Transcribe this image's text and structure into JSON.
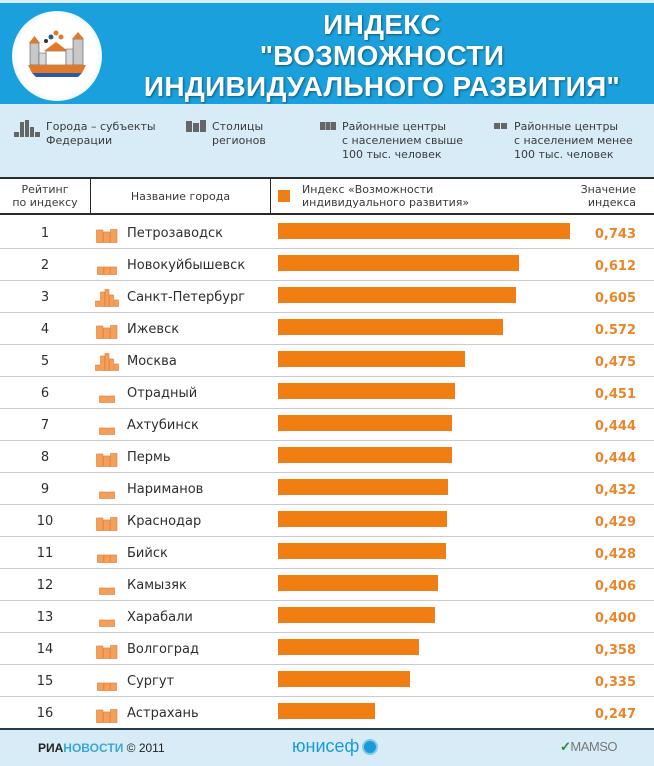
{
  "header": {
    "title_line1": "ИНДЕКС",
    "title_line2": "\"ВОЗМОЖНОСТИ",
    "title_line3": "ИНДИВИДУАЛЬНОГО РАЗВИТИЯ\"",
    "logo_icon": "city-logo-icon"
  },
  "legend": {
    "items": [
      {
        "icon": "federal-city-icon",
        "line1": "Города – субъекты",
        "line2": "Федерации",
        "line3": ""
      },
      {
        "icon": "regional-capital-icon",
        "line1": "Столицы",
        "line2": "регионов",
        "line3": ""
      },
      {
        "icon": "district-center-large-icon",
        "line1": "Районные центры",
        "line2": "с населением свыше",
        "line3": "100 тыс. человек"
      },
      {
        "icon": "district-center-small-icon",
        "line1": "Районные центры",
        "line2": "с населением менее",
        "line3": "100 тыс. человек"
      }
    ]
  },
  "table": {
    "headers": {
      "rank_line1": "Рейтинг",
      "rank_line2": "по индексу",
      "city": "Название города",
      "index_line1": "Индекс «Возможности",
      "index_line2": "индивидуального развития»",
      "value_line1": "Значение",
      "value_line2": "индекса"
    },
    "colors": {
      "bar": "#f07e12",
      "value_text": "#e9862a",
      "header_blue": "#1aa0dc",
      "light_blue": "#d8ecf8"
    }
  },
  "chart_data": {
    "type": "bar",
    "orientation": "horizontal",
    "title": "Индекс \"Возможности индивидуального развития\"",
    "xlabel": "Индекс «Возможности индивидуального развития»",
    "ylabel": "Название города",
    "xlim": [
      0,
      0.75
    ],
    "grid": false,
    "legend_position": "top",
    "rows": [
      {
        "rank": "1",
        "city": "Петрозаводск",
        "type": "regional-capital",
        "value": 0.743,
        "label": "0,743"
      },
      {
        "rank": "2",
        "city": "Новокуйбышевск",
        "type": "district-center-large",
        "value": 0.612,
        "label": "0,612"
      },
      {
        "rank": "3",
        "city": "Санкт-Петербург",
        "type": "federal-city",
        "value": 0.605,
        "label": "0,605"
      },
      {
        "rank": "4",
        "city": "Ижевск",
        "type": "regional-capital",
        "value": 0.572,
        "label": "0.572"
      },
      {
        "rank": "5",
        "city": "Москва",
        "type": "federal-city",
        "value": 0.475,
        "label": "0,475"
      },
      {
        "rank": "6",
        "city": "Отрадный",
        "type": "district-center-small",
        "value": 0.451,
        "label": "0,451"
      },
      {
        "rank": "7",
        "city": "Ахтубинск",
        "type": "district-center-small",
        "value": 0.444,
        "label": "0,444"
      },
      {
        "rank": "8",
        "city": "Пермь",
        "type": "regional-capital",
        "value": 0.444,
        "label": "0,444"
      },
      {
        "rank": "9",
        "city": "Нариманов",
        "type": "district-center-small",
        "value": 0.432,
        "label": "0,432"
      },
      {
        "rank": "10",
        "city": "Краснодар",
        "type": "regional-capital",
        "value": 0.429,
        "label": "0,429"
      },
      {
        "rank": "11",
        "city": "Бийск",
        "type": "district-center-large",
        "value": 0.428,
        "label": "0,428"
      },
      {
        "rank": "12",
        "city": "Камызяк",
        "type": "district-center-small",
        "value": 0.406,
        "label": "0,406"
      },
      {
        "rank": "13",
        "city": "Харабали",
        "type": "district-center-small",
        "value": 0.4,
        "label": "0,400"
      },
      {
        "rank": "14",
        "city": "Волгоград",
        "type": "regional-capital",
        "value": 0.358,
        "label": "0,358"
      },
      {
        "rank": "15",
        "city": "Сургут",
        "type": "district-center-large",
        "value": 0.335,
        "label": "0,335"
      },
      {
        "rank": "16",
        "city": "Астрахань",
        "type": "regional-capital",
        "value": 0.247,
        "label": "0,247"
      }
    ]
  },
  "footer": {
    "ria_bold": "РИА",
    "ria_colored": "НОВОСТИ",
    "copyright": " © 2011",
    "unicef": "юнисеф",
    "partner": "MAMSO"
  }
}
